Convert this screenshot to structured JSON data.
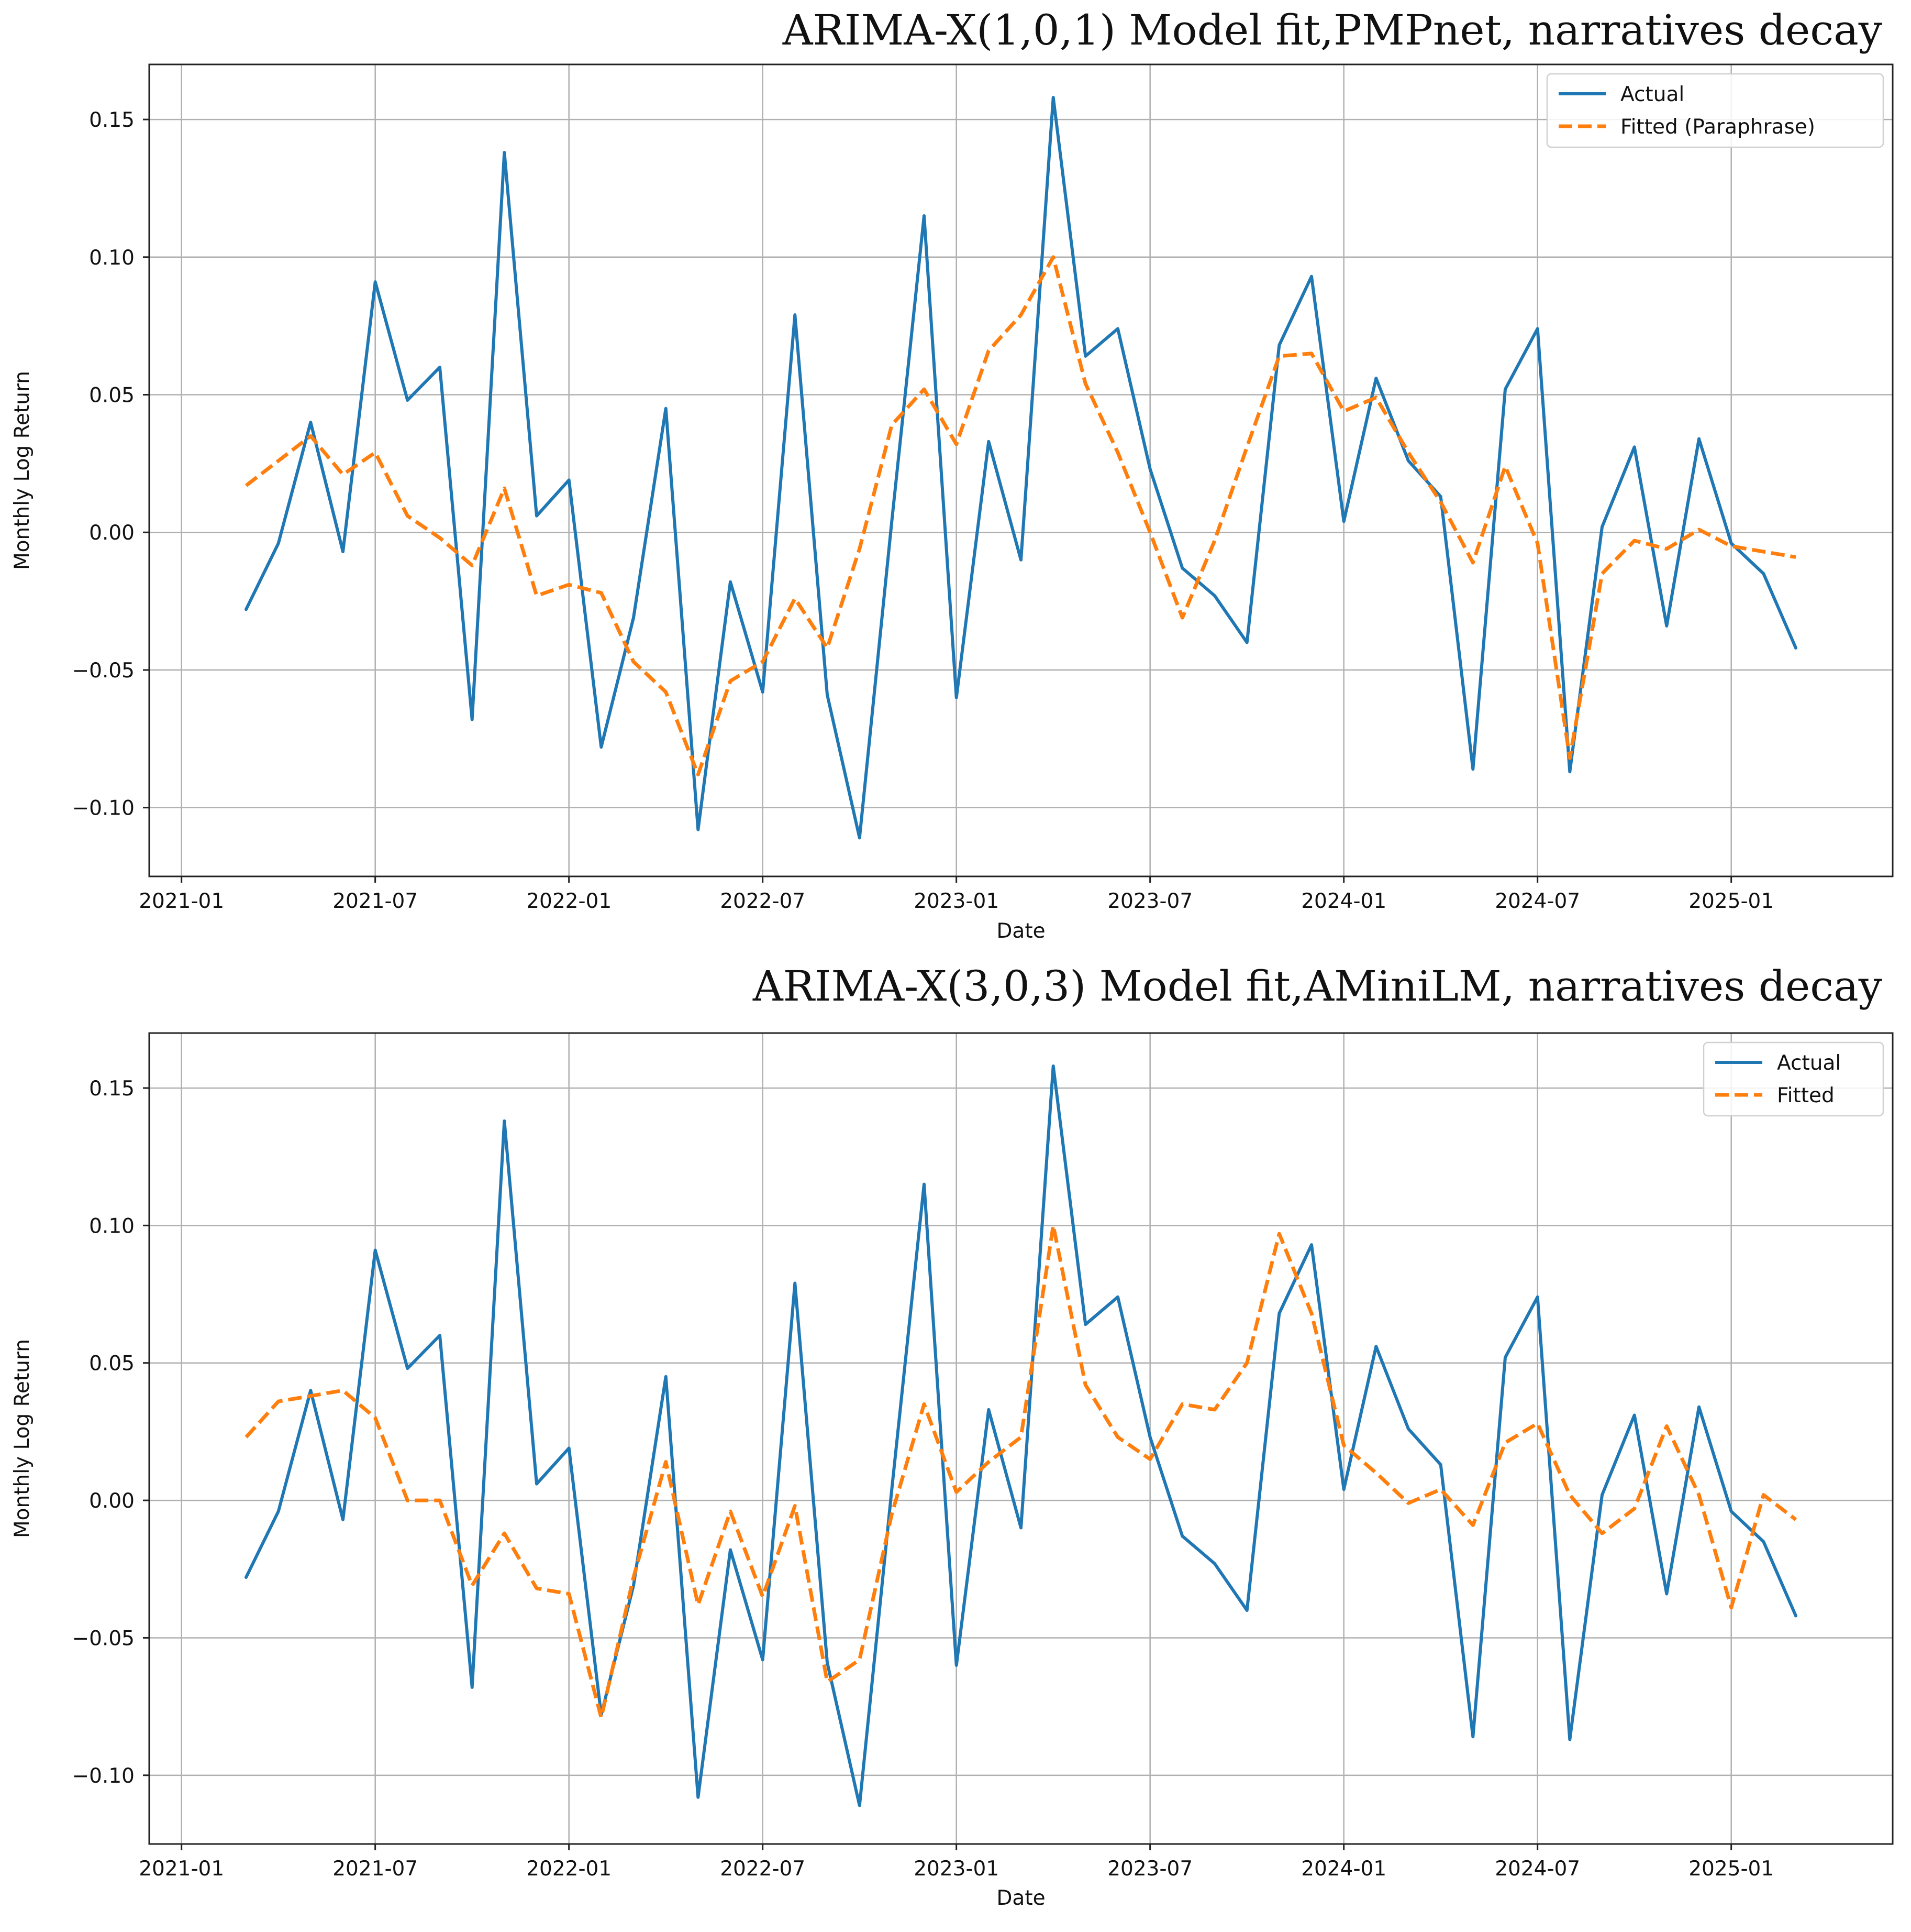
{
  "colors": {
    "actual": "#1f77b4",
    "fitted": "#ff7f0e",
    "grid": "#b0b0b0",
    "axes": "#222222",
    "text": "#111111",
    "background": "#ffffff"
  },
  "chart_data": [
    {
      "type": "line",
      "title": "ARIMA-X(1,0,1) Model fit,PMPnet, narratives decay",
      "xlabel": "Date",
      "ylabel": "Monthly Log Return",
      "grid": true,
      "legend_position": "top-right",
      "xlim": [
        "2020-12",
        "2025-06"
      ],
      "ylim": [
        -0.125,
        0.17
      ],
      "x_ticks": [
        {
          "value": "2021-01",
          "label": "2021-01"
        },
        {
          "value": "2021-07",
          "label": "2021-07"
        },
        {
          "value": "2022-01",
          "label": "2022-01"
        },
        {
          "value": "2022-07",
          "label": "2022-07"
        },
        {
          "value": "2023-01",
          "label": "2023-01"
        },
        {
          "value": "2023-07",
          "label": "2023-07"
        },
        {
          "value": "2024-01",
          "label": "2024-01"
        },
        {
          "value": "2024-07",
          "label": "2024-07"
        },
        {
          "value": "2025-01",
          "label": "2025-01"
        }
      ],
      "y_ticks": [
        {
          "value": -0.1,
          "label": "−0.10"
        },
        {
          "value": -0.05,
          "label": "−0.05"
        },
        {
          "value": 0.0,
          "label": "0.00"
        },
        {
          "value": 0.05,
          "label": "0.05"
        },
        {
          "value": 0.1,
          "label": "0.10"
        },
        {
          "value": 0.15,
          "label": "0.15"
        }
      ],
      "x": [
        "2021-03",
        "2021-04",
        "2021-05",
        "2021-06",
        "2021-07",
        "2021-08",
        "2021-09",
        "2021-10",
        "2021-11",
        "2021-12",
        "2022-01",
        "2022-02",
        "2022-03",
        "2022-04",
        "2022-05",
        "2022-06",
        "2022-07",
        "2022-08",
        "2022-09",
        "2022-10",
        "2022-11",
        "2022-12",
        "2023-01",
        "2023-02",
        "2023-03",
        "2023-04",
        "2023-05",
        "2023-06",
        "2023-07",
        "2023-08",
        "2023-09",
        "2023-10",
        "2023-11",
        "2023-12",
        "2024-01",
        "2024-02",
        "2024-03",
        "2024-04",
        "2024-05",
        "2024-06",
        "2024-07",
        "2024-08",
        "2024-09",
        "2024-10",
        "2024-11",
        "2024-12",
        "2025-01",
        "2025-02",
        "2025-03"
      ],
      "series": [
        {
          "name": "Actual",
          "style": "solid",
          "color": "#1f77b4",
          "values": [
            -0.028,
            -0.004,
            0.04,
            -0.007,
            0.091,
            0.048,
            0.06,
            -0.068,
            0.138,
            0.006,
            0.019,
            -0.078,
            -0.031,
            0.045,
            -0.108,
            -0.018,
            -0.058,
            0.079,
            -0.059,
            -0.111,
            0.004,
            0.115,
            -0.06,
            0.033,
            -0.01,
            0.158,
            0.064,
            0.074,
            0.023,
            -0.013,
            -0.023,
            -0.04,
            0.068,
            0.093,
            0.004,
            0.056,
            0.026,
            0.013,
            -0.086,
            0.052,
            0.074,
            -0.087,
            0.002,
            0.031,
            -0.034,
            0.034,
            -0.004,
            -0.015,
            -0.042
          ]
        },
        {
          "name": "Fitted (Paraphrase)",
          "style": "dashed",
          "color": "#ff7f0e",
          "values": [
            0.017,
            0.026,
            0.035,
            0.021,
            0.029,
            0.006,
            -0.002,
            -0.012,
            0.016,
            -0.023,
            -0.019,
            -0.022,
            -0.047,
            -0.058,
            -0.088,
            -0.054,
            -0.047,
            -0.024,
            -0.042,
            -0.006,
            0.039,
            0.052,
            0.032,
            0.066,
            0.079,
            0.1,
            0.054,
            0.029,
            0.0,
            -0.031,
            -0.003,
            0.031,
            0.064,
            0.065,
            0.044,
            0.049,
            0.029,
            0.011,
            -0.011,
            0.024,
            -0.004,
            -0.082,
            -0.015,
            -0.003,
            -0.006,
            0.001,
            -0.005,
            -0.007,
            -0.009
          ]
        }
      ]
    },
    {
      "type": "line",
      "title": "ARIMA-X(3,0,3) Model fit,AMiniLM, narratives decay",
      "xlabel": "Date",
      "ylabel": "Monthly Log Return",
      "grid": true,
      "legend_position": "top-right",
      "xlim": [
        "2020-12",
        "2025-06"
      ],
      "ylim": [
        -0.125,
        0.17
      ],
      "x_ticks": [
        {
          "value": "2021-01",
          "label": "2021-01"
        },
        {
          "value": "2021-07",
          "label": "2021-07"
        },
        {
          "value": "2022-01",
          "label": "2022-01"
        },
        {
          "value": "2022-07",
          "label": "2022-07"
        },
        {
          "value": "2023-01",
          "label": "2023-01"
        },
        {
          "value": "2023-07",
          "label": "2023-07"
        },
        {
          "value": "2024-01",
          "label": "2024-01"
        },
        {
          "value": "2024-07",
          "label": "2024-07"
        },
        {
          "value": "2025-01",
          "label": "2025-01"
        }
      ],
      "y_ticks": [
        {
          "value": -0.1,
          "label": "−0.10"
        },
        {
          "value": -0.05,
          "label": "−0.05"
        },
        {
          "value": 0.0,
          "label": "0.00"
        },
        {
          "value": 0.05,
          "label": "0.05"
        },
        {
          "value": 0.1,
          "label": "0.10"
        },
        {
          "value": 0.15,
          "label": "0.15"
        }
      ],
      "x": [
        "2021-03",
        "2021-04",
        "2021-05",
        "2021-06",
        "2021-07",
        "2021-08",
        "2021-09",
        "2021-10",
        "2021-11",
        "2021-12",
        "2022-01",
        "2022-02",
        "2022-03",
        "2022-04",
        "2022-05",
        "2022-06",
        "2022-07",
        "2022-08",
        "2022-09",
        "2022-10",
        "2022-11",
        "2022-12",
        "2023-01",
        "2023-02",
        "2023-03",
        "2023-04",
        "2023-05",
        "2023-06",
        "2023-07",
        "2023-08",
        "2023-09",
        "2023-10",
        "2023-11",
        "2023-12",
        "2024-01",
        "2024-02",
        "2024-03",
        "2024-04",
        "2024-05",
        "2024-06",
        "2024-07",
        "2024-08",
        "2024-09",
        "2024-10",
        "2024-11",
        "2024-12",
        "2025-01",
        "2025-02",
        "2025-03"
      ],
      "series": [
        {
          "name": "Actual",
          "style": "solid",
          "color": "#1f77b4",
          "values": [
            -0.028,
            -0.004,
            0.04,
            -0.007,
            0.091,
            0.048,
            0.06,
            -0.068,
            0.138,
            0.006,
            0.019,
            -0.078,
            -0.031,
            0.045,
            -0.108,
            -0.018,
            -0.058,
            0.079,
            -0.059,
            -0.111,
            0.004,
            0.115,
            -0.06,
            0.033,
            -0.01,
            0.158,
            0.064,
            0.074,
            0.023,
            -0.013,
            -0.023,
            -0.04,
            0.068,
            0.093,
            0.004,
            0.056,
            0.026,
            0.013,
            -0.086,
            0.052,
            0.074,
            -0.087,
            0.002,
            0.031,
            -0.034,
            0.034,
            -0.004,
            -0.015,
            -0.042
          ]
        },
        {
          "name": "Fitted",
          "style": "dashed",
          "color": "#ff7f0e",
          "values": [
            0.023,
            0.036,
            0.038,
            0.04,
            0.03,
            0.0,
            0.0,
            -0.031,
            -0.012,
            -0.032,
            -0.034,
            -0.079,
            -0.028,
            0.014,
            -0.038,
            -0.004,
            -0.035,
            -0.002,
            -0.066,
            -0.058,
            -0.005,
            0.035,
            0.003,
            0.014,
            0.023,
            0.1,
            0.042,
            0.023,
            0.015,
            0.035,
            0.033,
            0.05,
            0.097,
            0.068,
            0.02,
            0.01,
            -0.001,
            0.004,
            -0.009,
            0.021,
            0.028,
            0.002,
            -0.012,
            -0.003,
            0.027,
            0.002,
            -0.039,
            0.002,
            -0.007
          ]
        }
      ]
    }
  ]
}
